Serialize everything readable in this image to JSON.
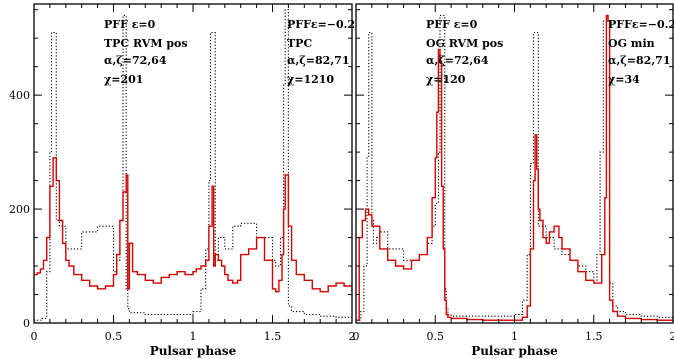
{
  "chart_data": [
    {
      "type": "line",
      "xlabel": "Pulsar phase",
      "ylabel": "",
      "xlim": [
        0,
        2
      ],
      "ylim": [
        0,
        560
      ],
      "x_ticks": [
        "0",
        "0.5",
        "1",
        "1.5",
        "2"
      ],
      "y_ticks": [
        "0",
        "200",
        "400"
      ],
      "annotations": [
        {
          "lines": [
            "PFF ε=0",
            "TPC RVM pos",
            "α,ζ=72,64",
            "χ=201"
          ]
        },
        {
          "lines": [
            "PFFε=−0.2",
            "TPC",
            "α,ζ=82,71",
            "χ=1210"
          ]
        }
      ],
      "series": [
        {
          "style": "dotted",
          "color": "#000000",
          "x": [
            0,
            0.05,
            0.08,
            0.1,
            0.11,
            0.12,
            0.14,
            0.16,
            0.2,
            0.3,
            0.4,
            0.5,
            0.52,
            0.54,
            0.56,
            0.57,
            0.58,
            0.59,
            0.6,
            0.7,
            0.8,
            0.9,
            1.0,
            1.05,
            1.08,
            1.1,
            1.11,
            1.12,
            1.14,
            1.16,
            1.2,
            1.25,
            1.3,
            1.4,
            1.5,
            1.52,
            1.55,
            1.57,
            1.58,
            1.59,
            1.6,
            1.62,
            1.7,
            1.8,
            1.9,
            2.0
          ],
          "y": [
            5,
            8,
            90,
            300,
            510,
            510,
            180,
            170,
            130,
            160,
            170,
            90,
            110,
            180,
            540,
            540,
            60,
            25,
            18,
            15,
            15,
            15,
            20,
            60,
            130,
            250,
            510,
            510,
            110,
            150,
            130,
            170,
            175,
            150,
            110,
            100,
            150,
            420,
            550,
            550,
            30,
            20,
            15,
            12,
            10,
            10
          ]
        },
        {
          "style": "solid",
          "color": "#d40000",
          "x": [
            0,
            0.02,
            0.04,
            0.06,
            0.08,
            0.1,
            0.12,
            0.14,
            0.16,
            0.18,
            0.2,
            0.22,
            0.25,
            0.3,
            0.35,
            0.4,
            0.45,
            0.5,
            0.52,
            0.54,
            0.56,
            0.58,
            0.59,
            0.6,
            0.62,
            0.65,
            0.7,
            0.75,
            0.8,
            0.85,
            0.9,
            0.95,
            1.0,
            1.02,
            1.05,
            1.08,
            1.1,
            1.12,
            1.13,
            1.14,
            1.16,
            1.18,
            1.2,
            1.22,
            1.25,
            1.28,
            1.3,
            1.35,
            1.4,
            1.45,
            1.5,
            1.52,
            1.54,
            1.56,
            1.57,
            1.58,
            1.6,
            1.62,
            1.65,
            1.7,
            1.75,
            1.8,
            1.85,
            1.9,
            1.95,
            2.0
          ],
          "y": [
            85,
            88,
            95,
            110,
            150,
            240,
            290,
            250,
            180,
            140,
            110,
            100,
            85,
            75,
            65,
            60,
            65,
            85,
            120,
            180,
            230,
            260,
            60,
            140,
            90,
            85,
            75,
            70,
            80,
            85,
            90,
            85,
            90,
            95,
            100,
            110,
            170,
            240,
            100,
            120,
            110,
            100,
            85,
            75,
            70,
            75,
            120,
            130,
            150,
            110,
            60,
            55,
            75,
            120,
            200,
            260,
            170,
            110,
            85,
            75,
            60,
            55,
            65,
            70,
            65,
            55
          ]
        }
      ]
    },
    {
      "type": "line",
      "xlabel": "Pulsar phase",
      "ylabel": "",
      "xlim": [
        0,
        2
      ],
      "ylim": [
        0,
        560
      ],
      "x_ticks": [
        "0",
        "0.5",
        "1",
        "1.5",
        "2"
      ],
      "y_ticks": [
        "0",
        "200",
        "400"
      ],
      "annotations": [
        {
          "lines": [
            "PFF ε=0",
            "OG RVM pos",
            "α,ζ=72,64",
            "χ=120"
          ]
        },
        {
          "lines": [
            "PFFε=−0.2",
            "OG min",
            "α,ζ=82,71",
            "χ=34"
          ]
        }
      ],
      "series": [
        {
          "style": "dotted",
          "color": "#000000",
          "x": [
            0,
            0.03,
            0.05,
            0.07,
            0.08,
            0.09,
            0.1,
            0.11,
            0.13,
            0.15,
            0.2,
            0.3,
            0.4,
            0.45,
            0.48,
            0.5,
            0.52,
            0.53,
            0.55,
            0.56,
            0.57,
            0.58,
            0.6,
            0.7,
            0.8,
            0.9,
            1.0,
            1.05,
            1.08,
            1.1,
            1.12,
            1.13,
            1.15,
            1.2,
            1.25,
            1.3,
            1.35,
            1.4,
            1.45,
            1.5,
            1.52,
            1.54,
            1.56,
            1.58,
            1.6,
            1.62,
            1.65,
            1.7,
            1.8,
            1.9,
            2.0
          ],
          "y": [
            5,
            20,
            100,
            290,
            510,
            510,
            180,
            140,
            150,
            160,
            130,
            110,
            120,
            140,
            170,
            210,
            300,
            540,
            540,
            60,
            25,
            15,
            12,
            12,
            12,
            12,
            15,
            40,
            120,
            280,
            510,
            510,
            170,
            150,
            130,
            120,
            110,
            100,
            90,
            75,
            120,
            300,
            530,
            530,
            70,
            30,
            20,
            15,
            12,
            10,
            10
          ]
        },
        {
          "style": "solid",
          "color": "#d40000",
          "x": [
            0,
            0.02,
            0.04,
            0.06,
            0.08,
            0.1,
            0.15,
            0.2,
            0.25,
            0.3,
            0.35,
            0.4,
            0.45,
            0.48,
            0.5,
            0.51,
            0.52,
            0.53,
            0.54,
            0.55,
            0.56,
            0.57,
            0.58,
            0.6,
            0.7,
            0.8,
            0.9,
            1.0,
            1.05,
            1.08,
            1.1,
            1.12,
            1.13,
            1.14,
            1.15,
            1.16,
            1.18,
            1.2,
            1.22,
            1.25,
            1.28,
            1.3,
            1.35,
            1.4,
            1.45,
            1.5,
            1.55,
            1.57,
            1.58,
            1.59,
            1.6,
            1.62,
            1.65,
            1.7,
            1.8,
            1.9,
            2.0
          ],
          "y": [
            5,
            150,
            180,
            200,
            190,
            170,
            130,
            110,
            100,
            95,
            110,
            120,
            150,
            220,
            290,
            370,
            480,
            460,
            240,
            130,
            40,
            15,
            10,
            8,
            6,
            5,
            5,
            5,
            10,
            30,
            130,
            250,
            330,
            270,
            200,
            180,
            150,
            140,
            160,
            170,
            150,
            130,
            110,
            90,
            75,
            70,
            120,
            220,
            540,
            530,
            40,
            20,
            12,
            8,
            6,
            5,
            5
          ]
        }
      ]
    }
  ]
}
